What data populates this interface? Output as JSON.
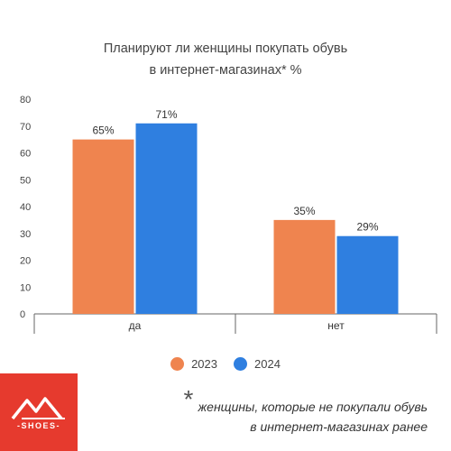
{
  "chart_data": {
    "type": "bar",
    "title": "Планируют ли женщины покупать обувь",
    "subtitle": "в интернет-магазинах* %",
    "categories": [
      "да",
      "нет"
    ],
    "series": [
      {
        "name": "2023",
        "color": "#ef844f",
        "values": [
          65,
          35
        ],
        "labels": [
          "65%",
          "35%"
        ]
      },
      {
        "name": "2024",
        "color": "#2f7fe0",
        "values": [
          71,
          29
        ],
        "labels": [
          "71%",
          "29%"
        ]
      }
    ],
    "ylim": [
      0,
      80
    ],
    "yticks": [
      0,
      10,
      20,
      30,
      40,
      50,
      60,
      70,
      80
    ],
    "grid": false,
    "legend": "bottom"
  },
  "footnote": {
    "star": "*",
    "line1": "женщины, которые не покупали обувь",
    "line2": "в интернет-магазинах ранее"
  },
  "logo": {
    "text": "-SHOES-",
    "color": "#e63a2e"
  }
}
